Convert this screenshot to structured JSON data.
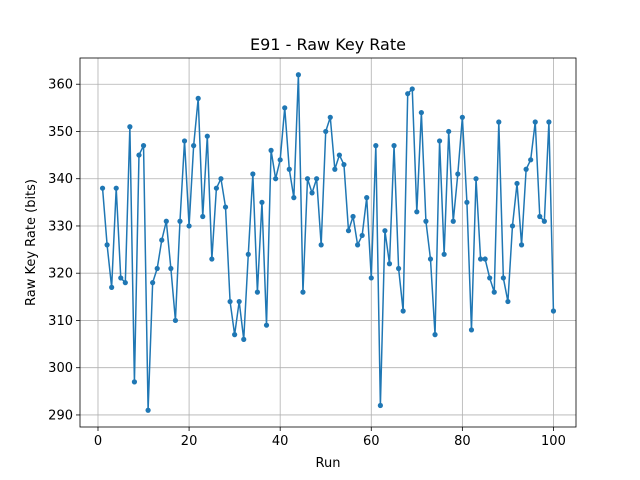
{
  "chart_data": {
    "type": "line",
    "title": "E91 - Raw Key Rate",
    "xlabel": "Run",
    "ylabel": "Raw Key Rate (bits)",
    "xlim": [
      -3.95,
      104.95
    ],
    "ylim": [
      287.45,
      365.55
    ],
    "xticks": [
      0,
      20,
      40,
      60,
      80,
      100
    ],
    "yticks": [
      290,
      300,
      310,
      320,
      330,
      340,
      350,
      360
    ],
    "grid": true,
    "marker": "circle",
    "line_color": "#1f77b4",
    "series": [
      {
        "x": [
          1,
          2,
          3,
          4,
          5,
          6,
          7,
          8,
          9,
          10,
          11,
          12,
          13,
          14,
          15,
          16,
          17,
          18,
          19,
          20,
          21,
          22,
          23,
          24,
          25,
          26,
          27,
          28,
          29,
          30,
          31,
          32,
          33,
          34,
          35,
          36,
          37,
          38,
          39,
          40,
          41,
          42,
          43,
          44,
          45,
          46,
          47,
          48,
          49,
          50,
          51,
          52,
          53,
          54,
          55,
          56,
          57,
          58,
          59,
          60,
          61,
          62,
          63,
          64,
          65,
          66,
          67,
          68,
          69,
          70,
          71,
          72,
          73,
          74,
          75,
          76,
          77,
          78,
          79,
          80,
          81,
          82,
          83,
          84,
          85,
          86,
          87,
          88,
          89,
          90,
          91,
          92,
          93,
          94,
          95,
          96,
          97,
          98,
          99,
          100
        ],
        "values": [
          338,
          326,
          317,
          338,
          319,
          318,
          351,
          297,
          345,
          347,
          291,
          318,
          321,
          327,
          331,
          321,
          310,
          331,
          348,
          330,
          347,
          357,
          332,
          349,
          323,
          338,
          340,
          334,
          314,
          307,
          314,
          306,
          324,
          341,
          316,
          335,
          309,
          346,
          340,
          344,
          355,
          342,
          336,
          362,
          316,
          340,
          337,
          340,
          326,
          350,
          353,
          342,
          345,
          343,
          329,
          332,
          326,
          328,
          336,
          319,
          347,
          292,
          329,
          322,
          347,
          321,
          312,
          358,
          359,
          333,
          354,
          331,
          323,
          307,
          348,
          324,
          350,
          331,
          341,
          353,
          335,
          308,
          340,
          323,
          323,
          319,
          316,
          352,
          319,
          314,
          330,
          339,
          326,
          342,
          344,
          352,
          332,
          331,
          352,
          312
        ]
      }
    ]
  }
}
